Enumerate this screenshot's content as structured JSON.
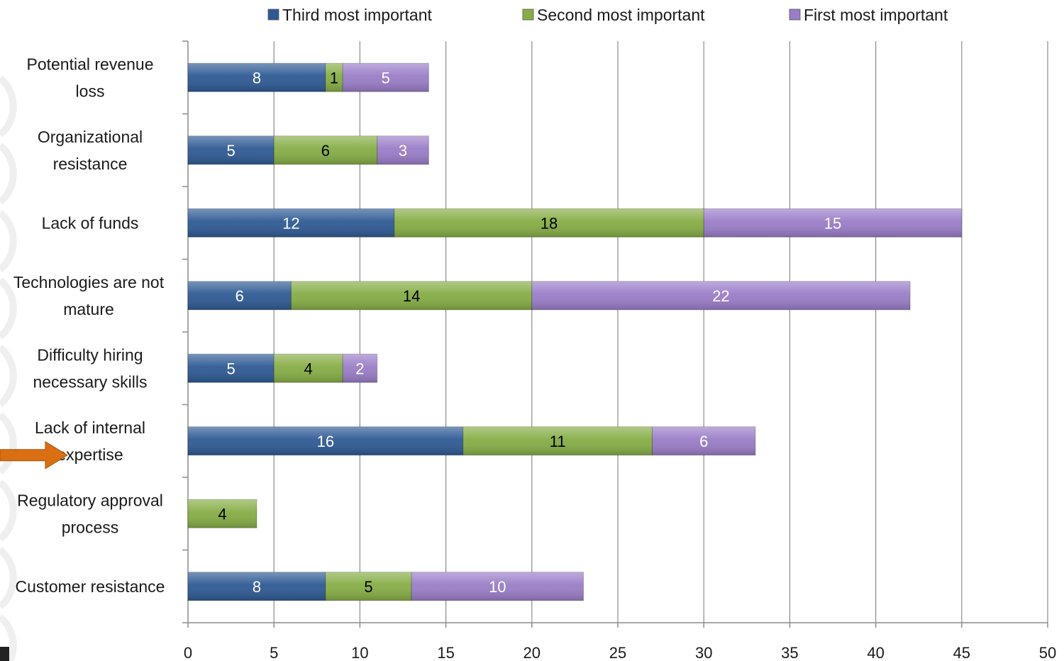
{
  "chart_data": {
    "type": "bar",
    "orientation": "horizontal",
    "stacked": true,
    "title": "",
    "xlabel": "",
    "ylabel": "",
    "xlim": [
      0,
      50
    ],
    "x_ticks": [
      0,
      5,
      10,
      15,
      20,
      25,
      30,
      35,
      40,
      45,
      50
    ],
    "grid": "vertical",
    "legend_position": "top",
    "categories": [
      [
        "Potential revenue",
        "loss"
      ],
      [
        "Organizational",
        "resistance"
      ],
      [
        "Lack of funds"
      ],
      [
        "Technologies are  not",
        "mature"
      ],
      [
        "Difficulty hiring",
        "necessary skills"
      ],
      [
        "Lack of internal",
        "expertise"
      ],
      [
        "Regulatory approval",
        "process"
      ],
      [
        "Customer resistance"
      ]
    ],
    "series": [
      {
        "name": "Third most important",
        "color": "#2e5a94",
        "label_color": "#ffffff",
        "values": [
          8,
          5,
          12,
          6,
          5,
          16,
          null,
          8
        ]
      },
      {
        "name": "Second most important",
        "color": "#86ad45",
        "label_color": "#000000",
        "values": [
          1,
          6,
          18,
          14,
          4,
          11,
          4,
          5
        ]
      },
      {
        "name": "First most important",
        "color": "#9a7dc8",
        "label_color": "#ffffff",
        "values": [
          5,
          3,
          15,
          22,
          2,
          6,
          null,
          10
        ]
      }
    ],
    "highlight_arrow": {
      "category_index": 5,
      "color": "#d96f12"
    }
  }
}
